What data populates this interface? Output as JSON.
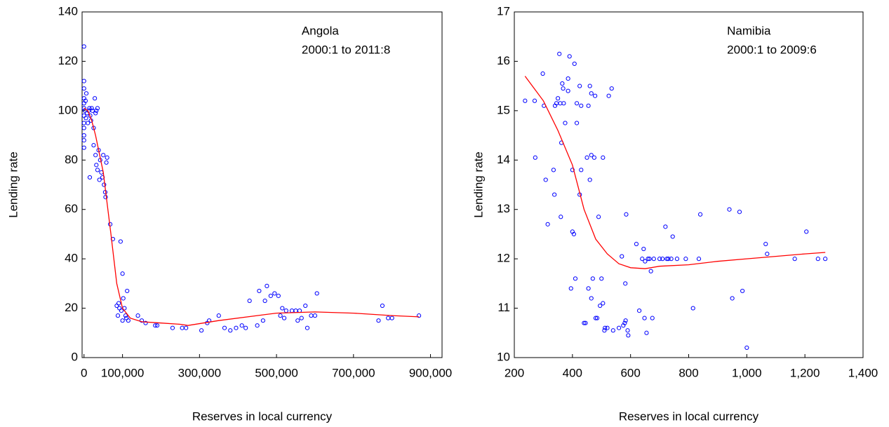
{
  "chart_data": [
    {
      "type": "scatter",
      "annotation": [
        "Angola",
        "2000:1 to 2011:8"
      ],
      "xlabel": "Reserves in local currency",
      "ylabel": "Lending rate",
      "xlim": [
        -5000,
        930000
      ],
      "ylim": [
        0,
        140
      ],
      "xticks": [
        0,
        {
          "value": 100000,
          "label": "100,000"
        },
        {
          "value": 300000,
          "label": "300,000"
        },
        {
          "value": 500000,
          "label": "500,000"
        },
        {
          "value": 700000,
          "label": "700,000"
        },
        {
          "value": 900000,
          "label": "900,000"
        }
      ],
      "yticks": [
        0,
        20,
        40,
        60,
        80,
        100,
        120,
        140
      ],
      "points": {
        "color": "#0000ff",
        "x": [
          0,
          0,
          0,
          0,
          0,
          0,
          0,
          0,
          0,
          0,
          0,
          0,
          2000,
          4000,
          5000,
          6000,
          8000,
          10000,
          12000,
          14000,
          16000,
          18000,
          20000,
          22000,
          25000,
          28000,
          30000,
          32000,
          35000,
          15000,
          25000,
          30000,
          32000,
          35000,
          38000,
          40000,
          42000,
          45000,
          48000,
          50000,
          52000,
          55000,
          56000,
          58000,
          60000,
          68000,
          75000,
          85000,
          88000,
          90000,
          92000,
          95000,
          97000,
          100000,
          100000,
          102000,
          105000,
          108000,
          110000,
          112000,
          115000,
          140000,
          150000,
          160000,
          185000,
          190000,
          230000,
          255000,
          265000,
          305000,
          320000,
          325000,
          350000,
          365000,
          380000,
          395000,
          410000,
          420000,
          430000,
          450000,
          455000,
          465000,
          470000,
          475000,
          485000,
          495000,
          505000,
          510000,
          515000,
          520000,
          525000,
          540000,
          550000,
          555000,
          560000,
          565000,
          575000,
          580000,
          590000,
          600000,
          605000,
          765000,
          775000,
          790000,
          800000,
          870000
        ],
        "y": [
          126,
          112,
          109,
          105,
          103,
          101,
          98,
          95,
          93,
          90,
          88,
          85,
          100,
          104,
          97,
          107,
          99,
          95,
          100,
          101,
          98,
          96,
          101,
          100,
          93,
          105,
          99,
          100,
          101,
          73,
          86,
          82,
          78,
          76,
          84,
          72,
          80,
          75,
          73,
          82,
          70,
          67,
          65,
          79,
          81,
          54,
          48,
          21,
          17,
          22,
          20,
          47,
          19,
          34,
          15,
          24,
          20,
          17,
          16,
          27,
          15,
          17,
          15,
          14,
          13,
          13,
          12,
          12,
          12,
          11,
          14,
          15,
          17,
          12,
          11,
          12,
          13,
          12,
          23,
          13,
          27,
          15,
          23,
          29,
          25,
          26,
          25,
          17,
          20,
          16,
          19,
          19,
          19,
          15,
          19,
          16,
          21,
          12,
          17,
          17,
          26,
          15,
          21,
          16,
          16,
          17
        ]
      },
      "fit": {
        "color": "#ff0000",
        "x": [
          0,
          10000,
          20000,
          30000,
          50000,
          70000,
          85000,
          100000,
          120000,
          150000,
          200000,
          250000,
          270000,
          350000,
          450000,
          500000,
          600000,
          700000,
          800000,
          870000
        ],
        "y": [
          101,
          100,
          96,
          90,
          75,
          50,
          30,
          20,
          16,
          14.5,
          14,
          13.5,
          13,
          15,
          17,
          18,
          18.5,
          18,
          17,
          16.5
        ]
      }
    },
    {
      "type": "scatter",
      "annotation": [
        "Namibia",
        "2000:1 to 2009:6"
      ],
      "xlabel": "Reserves in local currency",
      "ylabel": "Lending rate",
      "xlim": [
        200,
        1400
      ],
      "ylim": [
        10,
        17
      ],
      "xticks": [
        200,
        400,
        600,
        800,
        {
          "value": 1000,
          "label": "1,000"
        },
        {
          "value": 1200,
          "label": "1,200"
        },
        {
          "value": 1400,
          "label": "1,400"
        }
      ],
      "yticks": [
        10,
        11,
        12,
        13,
        14,
        15,
        16,
        17
      ],
      "points": {
        "color": "#0000ff",
        "x": [
          237,
          270,
          272,
          298,
          302,
          308,
          315,
          335,
          338,
          340,
          345,
          350,
          355,
          358,
          360,
          362,
          365,
          368,
          370,
          375,
          385,
          385,
          390,
          395,
          400,
          400,
          405,
          407,
          410,
          415,
          415,
          425,
          425,
          430,
          430,
          440,
          445,
          450,
          455,
          455,
          460,
          460,
          465,
          465,
          465,
          470,
          475,
          478,
          480,
          485,
          490,
          495,
          500,
          505,
          505,
          510,
          512,
          520,
          525,
          535,
          540,
          560,
          570,
          575,
          580,
          582,
          583,
          585,
          590,
          592,
          620,
          630,
          640,
          645,
          648,
          650,
          655,
          660,
          665,
          670,
          675,
          680,
          700,
          710,
          720,
          725,
          730,
          740,
          745,
          760,
          790,
          815,
          835,
          840,
          940,
          950,
          975,
          985,
          1000,
          1065,
          1070,
          1165,
          1205,
          1245,
          1270
        ],
        "y": [
          15.2,
          15.2,
          14.05,
          15.75,
          15.1,
          13.6,
          12.7,
          13.8,
          13.3,
          15.1,
          15.15,
          15.25,
          16.15,
          15.15,
          12.85,
          14.35,
          15.55,
          15.45,
          15.15,
          14.75,
          15.65,
          15.4,
          16.1,
          11.4,
          12.55,
          13.8,
          12.5,
          15.95,
          11.6,
          15.15,
          14.75,
          15.5,
          13.3,
          13.8,
          15.1,
          10.7,
          10.7,
          14.05,
          11.4,
          15.1,
          13.6,
          15.5,
          14.1,
          11.2,
          15.35,
          11.6,
          14.05,
          15.3,
          10.8,
          10.8,
          12.85,
          11.05,
          11.6,
          11.1,
          14.05,
          10.55,
          10.6,
          10.6,
          15.3,
          15.45,
          10.55,
          10.6,
          12.05,
          10.65,
          10.7,
          11.5,
          10.75,
          12.9,
          10.55,
          10.45,
          12.3,
          10.95,
          12.0,
          12.2,
          10.8,
          11.95,
          10.5,
          12.0,
          12.0,
          11.75,
          10.8,
          12.0,
          12.0,
          12.0,
          12.65,
          12.0,
          12.0,
          12.0,
          12.45,
          12.0,
          12.0,
          11.0,
          12.0,
          12.9,
          13.0,
          11.2,
          12.95,
          11.35,
          10.2,
          12.3,
          12.1,
          12.0,
          12.55,
          12.0,
          12.0
        ]
      },
      "fit": {
        "color": "#ff0000",
        "x": [
          237,
          300,
          350,
          400,
          440,
          480,
          520,
          560,
          600,
          650,
          700,
          800,
          900,
          1000,
          1100,
          1200,
          1270
        ],
        "y": [
          15.7,
          15.2,
          14.6,
          13.9,
          13.0,
          12.4,
          12.1,
          11.9,
          11.82,
          11.8,
          11.85,
          11.88,
          11.95,
          12.0,
          12.05,
          12.1,
          12.13
        ]
      }
    }
  ]
}
